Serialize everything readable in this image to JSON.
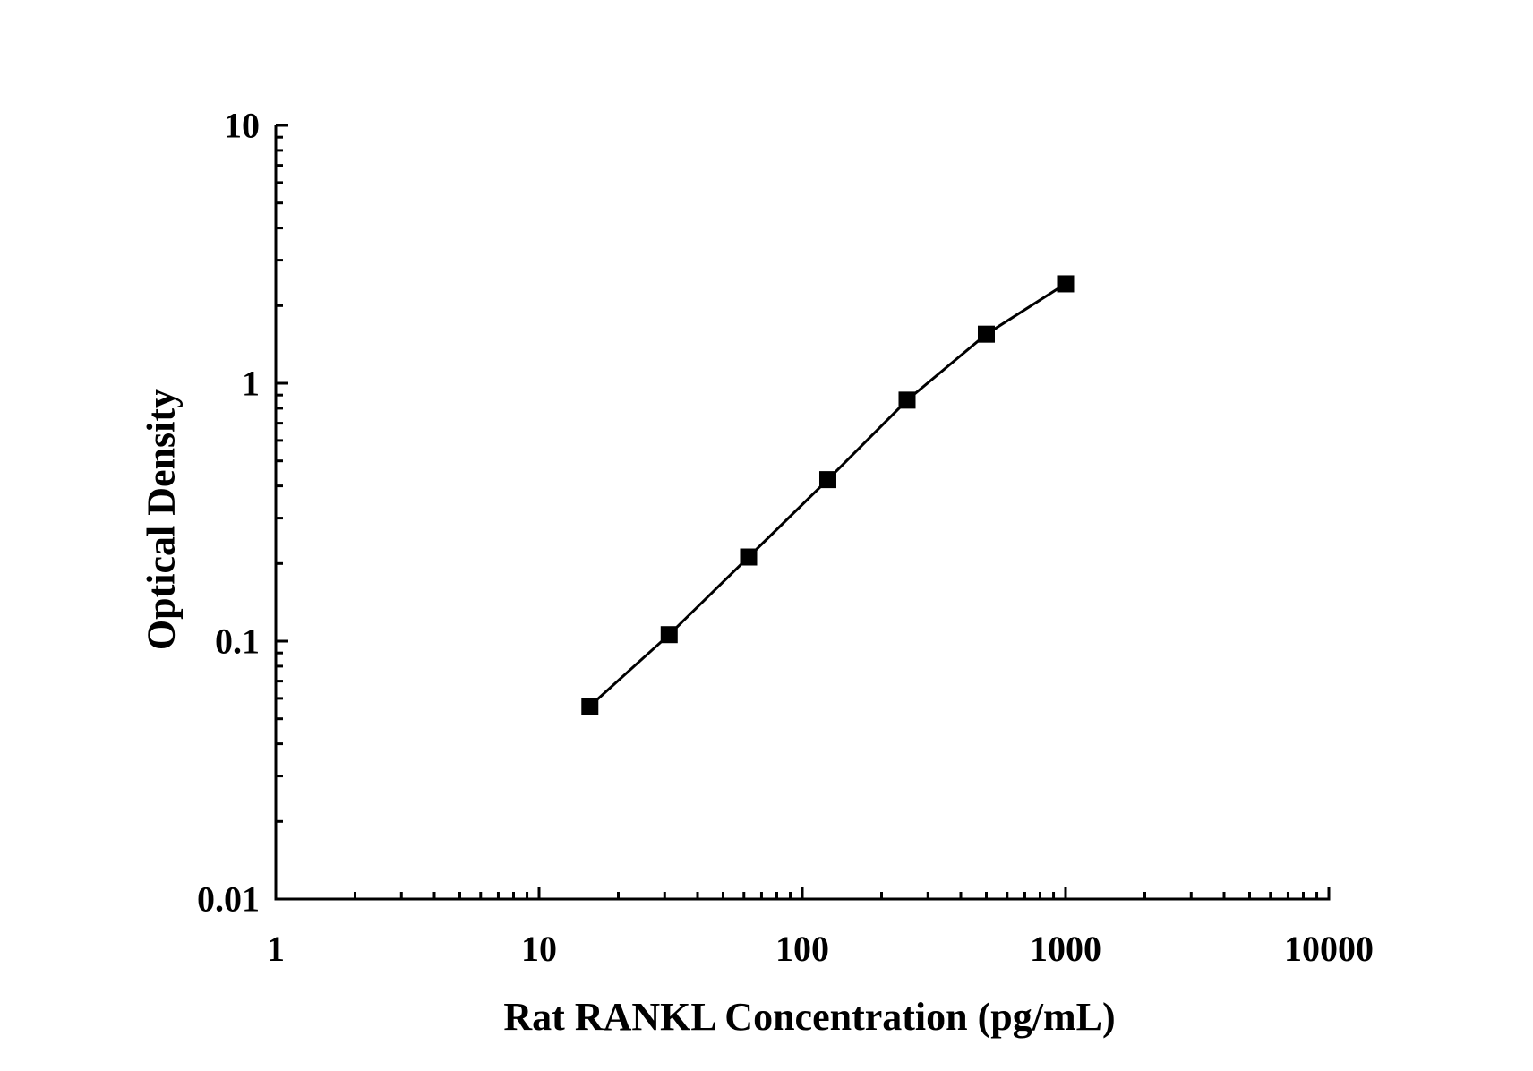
{
  "chart_data": {
    "type": "line",
    "title": "",
    "xlabel": "Rat RANKL Concentration (pg/mL)",
    "ylabel": "Optical Density",
    "x_scale": "log",
    "y_scale": "log",
    "xlim": [
      1,
      10000
    ],
    "ylim": [
      0.01,
      10
    ],
    "x_ticks": [
      1,
      10,
      100,
      1000,
      10000
    ],
    "x_tick_labels": [
      "1",
      "10",
      "100",
      "1000",
      "10000"
    ],
    "y_ticks": [
      0.01,
      0.1,
      1,
      10
    ],
    "y_tick_labels": [
      "0.01",
      "0.1",
      "1",
      "10"
    ],
    "grid": false,
    "legend": "none",
    "series": [
      {
        "x": [
          15.6,
          31.2,
          62.5,
          125,
          250,
          500,
          1000
        ],
        "y": [
          0.056,
          0.106,
          0.212,
          0.423,
          0.86,
          1.55,
          2.43
        ],
        "color": "#000000",
        "marker": "square"
      }
    ]
  }
}
